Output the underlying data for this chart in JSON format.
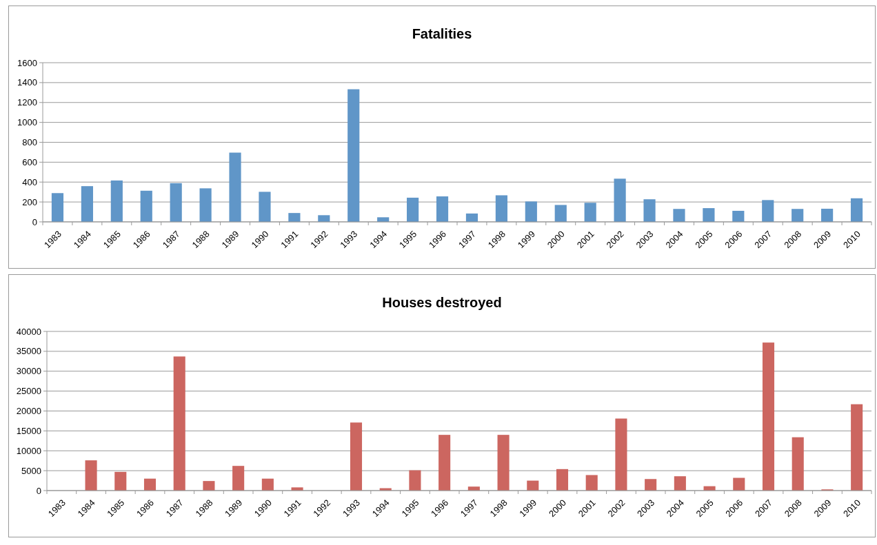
{
  "chart_data": [
    {
      "type": "bar",
      "title": "Fatalities",
      "categories": [
        "1983",
        "1984",
        "1985",
        "1986",
        "1987",
        "1988",
        "1989",
        "1990",
        "1991",
        "1992",
        "1993",
        "1994",
        "1995",
        "1996",
        "1997",
        "1998",
        "1999",
        "2000",
        "2001",
        "2002",
        "2003",
        "2004",
        "2005",
        "2006",
        "2007",
        "2008",
        "2009",
        "2010"
      ],
      "values": [
        289,
        359,
        416,
        313,
        389,
        337,
        696,
        302,
        89,
        67,
        1333,
        46,
        243,
        256,
        84,
        267,
        205,
        170,
        192,
        434,
        227,
        130,
        138,
        111,
        219,
        130,
        132,
        237
      ],
      "color": "#6096c8",
      "ylim": [
        0,
        1600
      ],
      "yticks": [
        0,
        200,
        400,
        600,
        800,
        1000,
        1200,
        1400,
        1600
      ],
      "grid": "y"
    },
    {
      "type": "bar",
      "title": "Houses destroyed",
      "categories": [
        "1983",
        "1984",
        "1985",
        "1986",
        "1987",
        "1988",
        "1989",
        "1990",
        "1991",
        "1992",
        "1993",
        "1994",
        "1995",
        "1996",
        "1997",
        "1998",
        "1999",
        "2000",
        "2001",
        "2002",
        "2003",
        "2004",
        "2005",
        "2006",
        "2007",
        "2008",
        "2009",
        "2010"
      ],
      "values": [
        0,
        7600,
        4700,
        3000,
        33700,
        2400,
        6200,
        3000,
        800,
        0,
        17100,
        600,
        5100,
        14000,
        1000,
        14000,
        2500,
        5400,
        3900,
        18100,
        2900,
        3600,
        1100,
        3200,
        37200,
        13400,
        300,
        21700
      ],
      "color": "#cc6660",
      "ylim": [
        0,
        40000
      ],
      "yticks": [
        0,
        5000,
        10000,
        15000,
        20000,
        25000,
        30000,
        35000,
        40000
      ],
      "grid": "y"
    }
  ]
}
